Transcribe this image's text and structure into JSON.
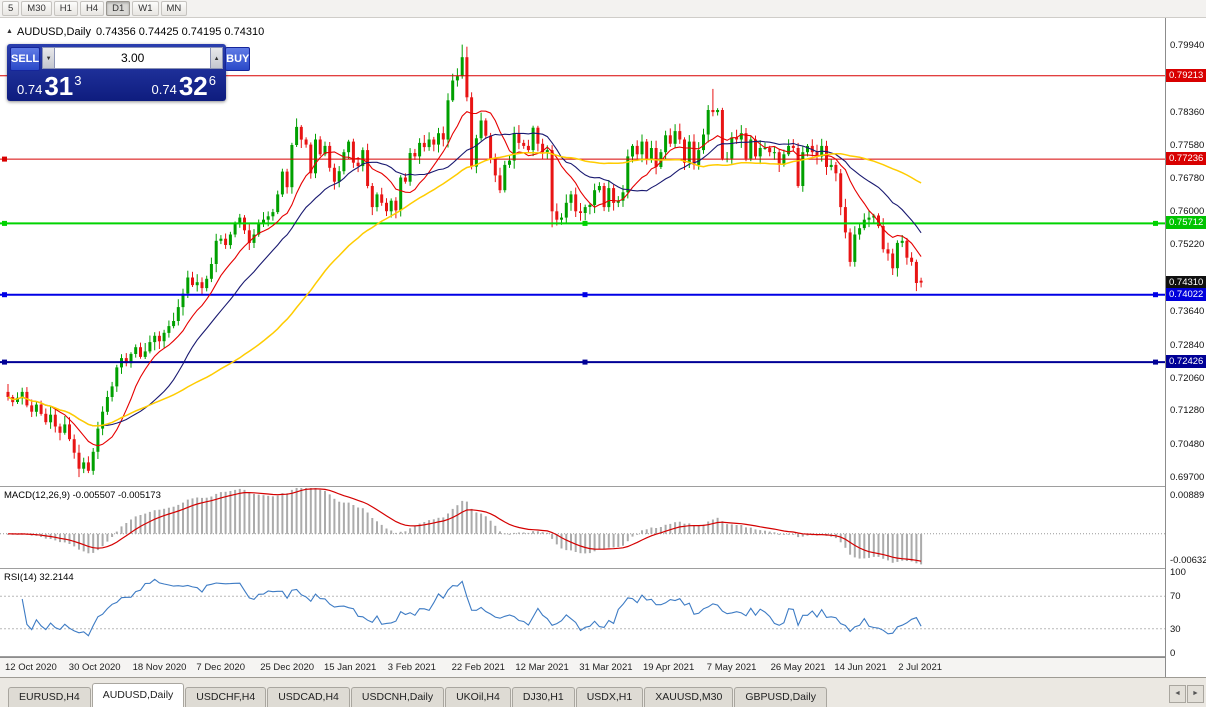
{
  "toolbar": {
    "buttons": [
      "5",
      "M30",
      "H1",
      "H4",
      "D1",
      "W1",
      "MN"
    ],
    "active": "D1"
  },
  "chart": {
    "title_symbol": "AUDUSD,Daily",
    "title_ohlc": "0.74356 0.74425 0.74195 0.74310"
  },
  "icons": {
    "collapse": "▲",
    "spin_up": "▲",
    "spin_down": "▼",
    "tab_left": "◄",
    "tab_right": "►"
  },
  "one_click": {
    "sell_label": "SELL",
    "buy_label": "BUY",
    "volume": "3.00",
    "sell": {
      "prefix": "0.74",
      "big": "31",
      "sup": "3"
    },
    "buy": {
      "prefix": "0.74",
      "big": "32",
      "sup": "6"
    }
  },
  "price_axis": {
    "labels": [
      "0.79940",
      "0.78360",
      "0.77580",
      "0.76780",
      "0.76000",
      "0.75220",
      "0.73640",
      "0.72840",
      "0.72060",
      "0.71280",
      "0.70480",
      "0.69700"
    ],
    "badges": [
      {
        "value": "0.79213",
        "bg": "#d80000"
      },
      {
        "value": "0.77236",
        "bg": "#d80000"
      },
      {
        "value": "0.75712",
        "bg": "#00c300"
      },
      {
        "value": "0.74310",
        "bg": "#101010"
      },
      {
        "value": "0.74022",
        "bg": "#0000dc"
      },
      {
        "value": "0.72426",
        "bg": "#000096"
      }
    ]
  },
  "macd": {
    "label": "MACD(12,26,9) -0.005507 -0.005173",
    "axis_top": "0.00889",
    "axis_bottom": "-0.00632"
  },
  "rsi": {
    "label": "RSI(14) 32.2144",
    "axis": [
      "100",
      "70",
      "30",
      "0"
    ]
  },
  "tabs": {
    "items": [
      "EURUSD,H4",
      "AUDUSD,Daily",
      "USDCHF,H4",
      "USDCAD,H4",
      "USDCNH,Daily",
      "UKOil,H4",
      "DJ30,H1",
      "USDX,H1",
      "XAUUSD,M30",
      "GBPUSD,Daily"
    ],
    "active": "AUDUSD,Daily"
  },
  "chart_data": {
    "type": "candlestick",
    "symbol": "AUDUSD",
    "timeframe": "Daily",
    "last_ohlc": {
      "open": 0.74356,
      "high": 0.74425,
      "low": 0.74195,
      "close": 0.7431
    },
    "y_axis": {
      "min": 0.6949,
      "max": 0.8058
    },
    "x_labels": [
      "12 Oct 2020",
      "30 Oct 2020",
      "18 Nov 2020",
      "7 Dec 2020",
      "25 Dec 2020",
      "15 Jan 2021",
      "3 Feb 2021",
      "22 Feb 2021",
      "12 Mar 2021",
      "31 Mar 2021",
      "19 Apr 2021",
      "7 May 2021",
      "26 May 2021",
      "14 Jun 2021",
      "2 Jul 2021"
    ],
    "closes": [
      0.716,
      0.7148,
      0.7158,
      0.7172,
      0.714,
      0.7125,
      0.7142,
      0.712,
      0.71,
      0.7118,
      0.709,
      0.7075,
      0.7095,
      0.706,
      0.7028,
      0.699,
      0.7005,
      0.6985,
      0.703,
      0.7085,
      0.7125,
      0.716,
      0.7185,
      0.723,
      0.7252,
      0.724,
      0.7262,
      0.7278,
      0.7255,
      0.7268,
      0.729,
      0.7305,
      0.7292,
      0.7312,
      0.7328,
      0.734,
      0.7373,
      0.7405,
      0.7443,
      0.7425,
      0.7432,
      0.7418,
      0.744,
      0.7475,
      0.753,
      0.7535,
      0.752,
      0.7545,
      0.757,
      0.7585,
      0.7555,
      0.7525,
      0.7545,
      0.757,
      0.758,
      0.7588,
      0.7598,
      0.764,
      0.7694,
      0.7657,
      0.7757,
      0.78,
      0.777,
      0.7758,
      0.769,
      0.777,
      0.7735,
      0.7755,
      0.7703,
      0.767,
      0.7695,
      0.774,
      0.7765,
      0.7715,
      0.7707,
      0.7745,
      0.766,
      0.761,
      0.764,
      0.762,
      0.76,
      0.7625,
      0.7602,
      0.768,
      0.767,
      0.7738,
      0.773,
      0.7762,
      0.7752,
      0.777,
      0.7758,
      0.7785,
      0.777,
      0.7863,
      0.791,
      0.792,
      0.7965,
      0.787,
      0.7706,
      0.7773,
      0.7815,
      0.7779,
      0.7725,
      0.7685,
      0.765,
      0.771,
      0.772,
      0.7785,
      0.7762,
      0.7755,
      0.7745,
      0.7798,
      0.776,
      0.774,
      0.7745,
      0.76,
      0.758,
      0.7585,
      0.762,
      0.764,
      0.76,
      0.7596,
      0.761,
      0.7615,
      0.765,
      0.766,
      0.761,
      0.7655,
      0.762,
      0.7625,
      0.7645,
      0.773,
      0.7755,
      0.7735,
      0.7765,
      0.7725,
      0.775,
      0.7705,
      0.774,
      0.778,
      0.776,
      0.779,
      0.777,
      0.7715,
      0.7765,
      0.771,
      0.7745,
      0.7782,
      0.784,
      0.7835,
      0.784,
      0.7725,
      0.7725,
      0.7775,
      0.777,
      0.7785,
      0.7725,
      0.777,
      0.773,
      0.775,
      0.775,
      0.774,
      0.774,
      0.771,
      0.7735,
      0.7755,
      0.775,
      0.766,
      0.774,
      0.7755,
      0.774,
      0.773,
      0.7755,
      0.7705,
      0.771,
      0.769,
      0.761,
      0.755,
      0.748,
      0.7545,
      0.756,
      0.758,
      0.7585,
      0.759,
      0.7565,
      0.751,
      0.75,
      0.7465,
      0.7525,
      0.753,
      0.749,
      0.748,
      0.743,
      0.7431
    ],
    "spikes": {
      "15": {
        "l": 0.697
      },
      "61": {
        "h": 0.782
      },
      "96": {
        "h": 0.7995
      },
      "97": {
        "h": 0.799
      },
      "115": {
        "l": 0.7562
      },
      "149": {
        "h": 0.789
      }
    },
    "colors": {
      "bull": "#00a000",
      "bear": "#e81414",
      "macd_hist": "#ababab",
      "macd_signal": "#d40000",
      "rsi_line": "#3d7bc4"
    },
    "moving_averages": [
      {
        "period": 10,
        "color": "#e60000"
      },
      {
        "period": 21,
        "color": "#191970"
      },
      {
        "period": 50,
        "color": "#ffcc00"
      }
    ],
    "horizontal_lines": [
      {
        "price": 0.79213,
        "color": "#d80000",
        "width": 1,
        "markers": []
      },
      {
        "price": 0.77236,
        "color": "#d80000",
        "width": 1,
        "markers": [
          0
        ]
      },
      {
        "price": 0.75712,
        "color": "#00d300",
        "width": 2,
        "markers": [
          0,
          0.5,
          1
        ]
      },
      {
        "price": 0.74022,
        "color": "#0000e6",
        "width": 2,
        "markers": [
          0,
          0.5,
          1
        ]
      },
      {
        "price": 0.72426,
        "color": "#000096",
        "width": 2,
        "markers": [
          0,
          0.5,
          1
        ]
      }
    ],
    "indicators": [
      {
        "name": "MACD",
        "params": [
          12,
          26,
          9
        ],
        "values": [
          -0.005507,
          -0.005173
        ],
        "range": [
          -0.00632,
          0.00889
        ]
      },
      {
        "name": "RSI",
        "params": [
          14
        ],
        "value": 32.2144,
        "levels": [
          30,
          70
        ],
        "range": [
          0,
          100
        ]
      }
    ]
  }
}
